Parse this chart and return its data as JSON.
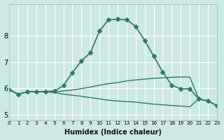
{
  "xlabel": "Humidex (Indice chaleur)",
  "background_color": "#cce9e3",
  "grid_color": "#ffffff",
  "line_color": "#2a7a6a",
  "xlim": [
    0,
    23
  ],
  "ylim": [
    4.8,
    9.2
  ],
  "yticks": [
    5,
    6,
    7,
    8
  ],
  "xticks": [
    0,
    1,
    2,
    3,
    4,
    5,
    6,
    7,
    8,
    9,
    10,
    11,
    12,
    13,
    14,
    15,
    16,
    17,
    18,
    19,
    20,
    21,
    22,
    23
  ],
  "series": [
    {
      "x": [
        0,
        1,
        2,
        3,
        4,
        5,
        6,
        7,
        8,
        9,
        10,
        11,
        12,
        13,
        14,
        15,
        16,
        17,
        18,
        19,
        20,
        21,
        22,
        23
      ],
      "y": [
        5.95,
        5.78,
        5.87,
        5.87,
        5.88,
        5.9,
        6.1,
        6.6,
        7.05,
        7.35,
        8.18,
        8.6,
        8.62,
        8.6,
        8.35,
        7.82,
        7.22,
        6.62,
        6.12,
        5.98,
        5.98,
        5.6,
        5.52,
        5.35
      ],
      "marker": "D",
      "markersize": 3,
      "linewidth": 1.2
    },
    {
      "x": [
        0,
        1,
        2,
        3,
        4,
        5,
        6,
        7,
        8,
        9,
        10,
        11,
        12,
        13,
        14,
        15,
        16,
        17,
        18,
        19,
        20,
        21,
        22,
        23
      ],
      "y": [
        5.95,
        5.78,
        5.87,
        5.87,
        5.88,
        5.87,
        5.9,
        5.94,
        5.99,
        6.05,
        6.12,
        6.18,
        6.22,
        6.28,
        6.32,
        6.35,
        6.38,
        6.4,
        6.42,
        6.43,
        6.43,
        5.6,
        5.52,
        5.35
      ],
      "marker": null,
      "markersize": 0,
      "linewidth": 1.0
    },
    {
      "x": [
        0,
        1,
        2,
        3,
        4,
        5,
        6,
        7,
        8,
        9,
        10,
        11,
        12,
        13,
        14,
        15,
        16,
        17,
        18,
        19,
        20,
        21,
        22,
        23
      ],
      "y": [
        5.95,
        5.78,
        5.87,
        5.87,
        5.87,
        5.84,
        5.78,
        5.74,
        5.7,
        5.65,
        5.6,
        5.55,
        5.52,
        5.5,
        5.48,
        5.44,
        5.4,
        5.38,
        5.35,
        5.33,
        5.3,
        5.6,
        5.52,
        5.35
      ],
      "marker": null,
      "markersize": 0,
      "linewidth": 1.0
    }
  ]
}
